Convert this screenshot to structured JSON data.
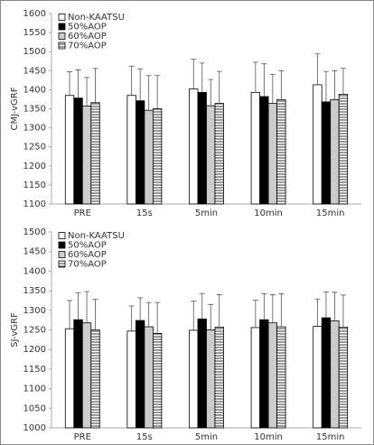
{
  "chart_data": [
    {
      "type": "bar",
      "ylabel": "CMJ-vGRF",
      "categories": [
        "PRE",
        "15s",
        "5min",
        "10min",
        "15min"
      ],
      "ylim": [
        1100,
        1600
      ],
      "yticks": [
        1100,
        1150,
        1200,
        1250,
        1300,
        1350,
        1400,
        1450,
        1500,
        1550,
        1600
      ],
      "grid": false,
      "legend": "upper left",
      "series": [
        {
          "name": "Non-KAATSU",
          "color": "#ffffff",
          "values": [
            1385,
            1385,
            1402,
            1393,
            1413
          ],
          "errors": [
            62,
            77,
            78,
            79,
            81
          ]
        },
        {
          "name": "50%AOP",
          "color": "#000000",
          "values": [
            1378,
            1371,
            1393,
            1382,
            1368
          ],
          "errors": [
            74,
            84,
            77,
            86,
            80
          ]
        },
        {
          "name": "60%AOP",
          "color": "#cccccc",
          "values": [
            1357,
            1346,
            1358,
            1364,
            1374
          ],
          "errors": [
            75,
            91,
            69,
            76,
            76
          ]
        },
        {
          "name": "70%AOP",
          "color": "#ffffff",
          "pattern": "horizontal-lines",
          "values": [
            1366,
            1350,
            1364,
            1374,
            1388
          ],
          "errors": [
            90,
            87,
            84,
            76,
            68
          ]
        }
      ]
    },
    {
      "type": "bar",
      "ylabel": "SJ-vGRF",
      "categories": [
        "PRE",
        "15s",
        "5min",
        "10min",
        "15min"
      ],
      "ylim": [
        1000,
        1500
      ],
      "yticks": [
        1000,
        1050,
        1100,
        1150,
        1200,
        1250,
        1300,
        1350,
        1400,
        1450,
        1500
      ],
      "grid": false,
      "legend": "upper left",
      "series": [
        {
          "name": "Non-KAATSU",
          "color": "#ffffff",
          "values": [
            1253,
            1247,
            1249,
            1256,
            1259
          ],
          "errors": [
            72,
            64,
            75,
            70,
            70
          ]
        },
        {
          "name": "50%AOP",
          "color": "#000000",
          "values": [
            1276,
            1274,
            1278,
            1276,
            1281
          ],
          "errors": [
            69,
            58,
            65,
            66,
            66
          ]
        },
        {
          "name": "60%AOP",
          "color": "#cccccc",
          "values": [
            1268,
            1258,
            1250,
            1268,
            1273
          ],
          "errors": [
            80,
            62,
            65,
            72,
            73
          ]
        },
        {
          "name": "70%AOP",
          "color": "#ffffff",
          "pattern": "horizontal-lines",
          "values": [
            1250,
            1241,
            1257,
            1258,
            1257
          ],
          "errors": [
            78,
            79,
            83,
            84,
            82
          ]
        }
      ]
    }
  ]
}
